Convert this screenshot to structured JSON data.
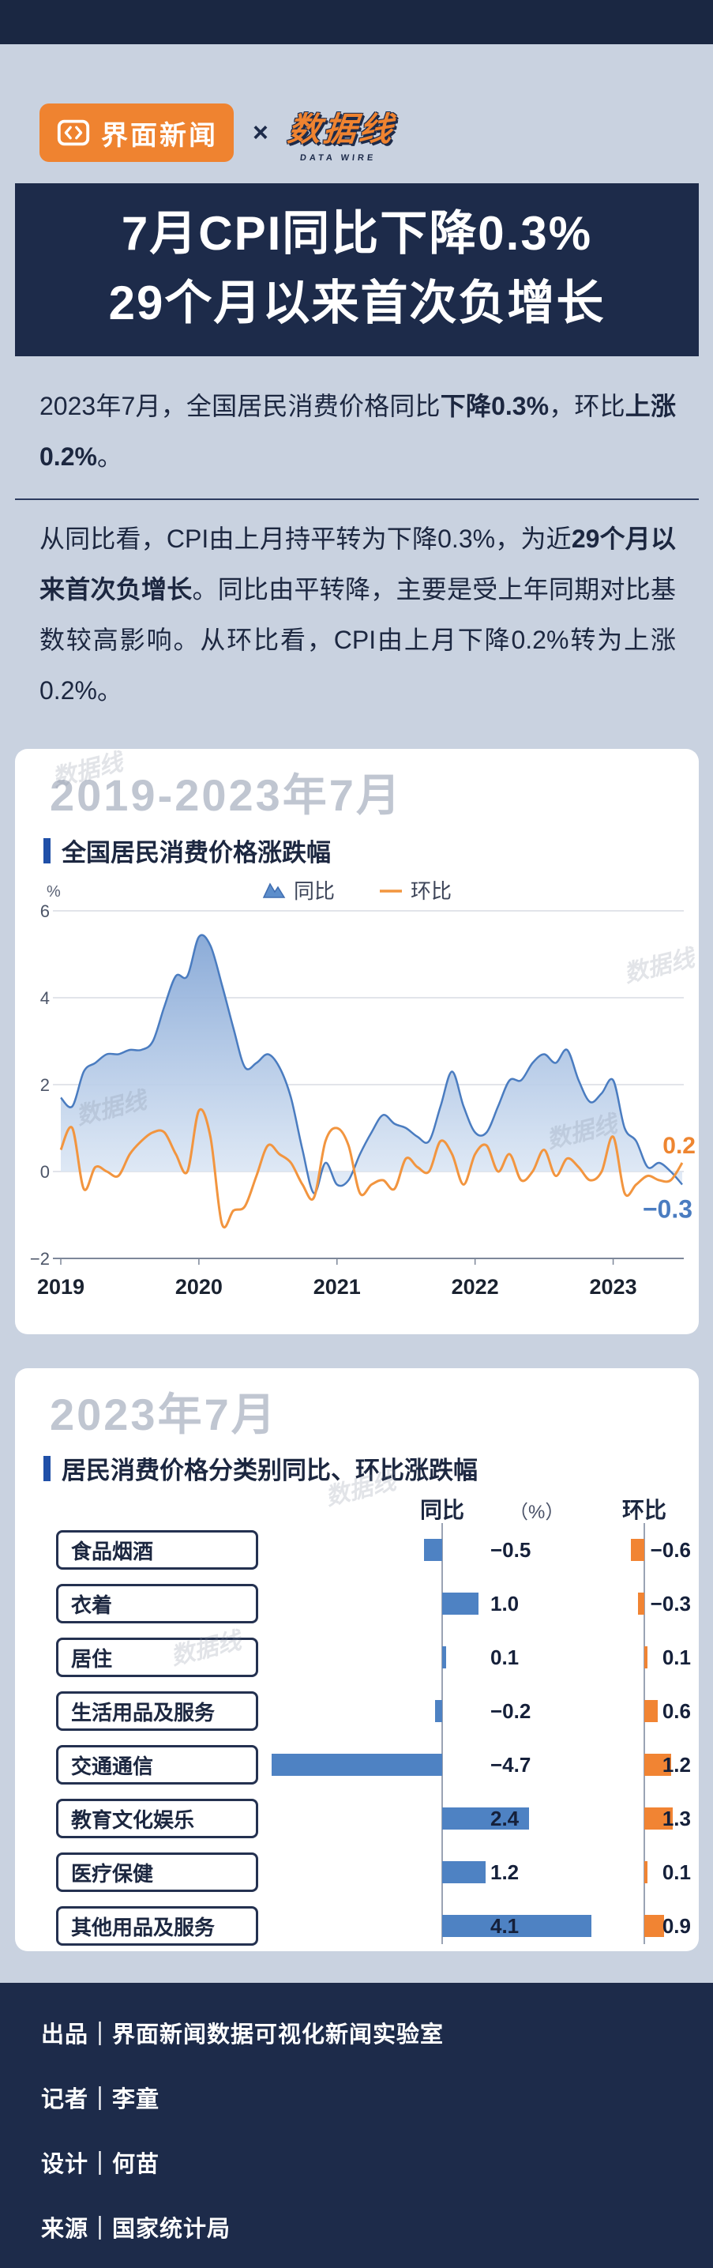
{
  "colors": {
    "navy": "#1d2b4a",
    "orange": "#ef8330",
    "blue": "#4e82c3",
    "page_bg": "#c9d2e0",
    "accent_bar": "#2050a8"
  },
  "watermark": "数据线",
  "header": {
    "brand": {
      "jiemian": "界面新闻",
      "x": "×",
      "datawire": "数据线",
      "datawire_sub": "DATA WIRE"
    },
    "title_line1": "7月CPI同比下降0.3%",
    "title_line2": "29个月以来首次负增长",
    "para1": [
      {
        "t": "2023年7月，全国居民消费价格同比",
        "b": false
      },
      {
        "t": "下降0.3%",
        "b": true
      },
      {
        "t": "，环比",
        "b": false
      },
      {
        "t": "上涨0.2%",
        "b": true
      },
      {
        "t": "。",
        "b": false
      }
    ],
    "para2": [
      {
        "t": "从同比看，CPI由上月持平转为下降0.3%，为近",
        "b": false
      },
      {
        "t": "29个月以来首次负增长",
        "b": true
      },
      {
        "t": "。同比由平转降，主要是受上年同期对比基数较高影响。从环比看，CPI由上月下降0.2%转为上涨0.2%。",
        "b": false
      }
    ]
  },
  "chart1": {
    "period_heading": "2019-2023年7月",
    "title": "全国居民消费价格涨跌幅",
    "unit": "%",
    "legend": [
      "同比",
      "环比"
    ],
    "end_labels": {
      "mom": "0.2",
      "yoy": "−0.3"
    }
  },
  "chart2": {
    "period_heading": "2023年7月",
    "title": "居民消费价格分类别同比、环比涨跌幅",
    "col_yoy": "同比",
    "col_unit": "（%）",
    "col_mom": "环比"
  },
  "footer": {
    "lines": [
      "出品｜界面新闻数据可视化新闻实验室",
      "记者｜李童",
      "设计｜何苗",
      "来源｜国家统计局"
    ]
  },
  "chart_data": [
    {
      "type": "line",
      "title": "全国居民消费价格涨跌幅",
      "ylabel": "%",
      "ylim": [
        -2,
        6
      ],
      "yticks": [
        6,
        4,
        2,
        0,
        -2
      ],
      "xticks": [
        "2019",
        "2020",
        "2021",
        "2022",
        "2023"
      ],
      "legend_position": "top",
      "grid": true,
      "x": [
        "2019-01",
        "2019-02",
        "2019-03",
        "2019-04",
        "2019-05",
        "2019-06",
        "2019-07",
        "2019-08",
        "2019-09",
        "2019-10",
        "2019-11",
        "2019-12",
        "2020-01",
        "2020-02",
        "2020-03",
        "2020-04",
        "2020-05",
        "2020-06",
        "2020-07",
        "2020-08",
        "2020-09",
        "2020-10",
        "2020-11",
        "2020-12",
        "2021-01",
        "2021-02",
        "2021-03",
        "2021-04",
        "2021-05",
        "2021-06",
        "2021-07",
        "2021-08",
        "2021-09",
        "2021-10",
        "2021-11",
        "2021-12",
        "2022-01",
        "2022-02",
        "2022-03",
        "2022-04",
        "2022-05",
        "2022-06",
        "2022-07",
        "2022-08",
        "2022-09",
        "2022-10",
        "2022-11",
        "2022-12",
        "2023-01",
        "2023-02",
        "2023-03",
        "2023-04",
        "2023-05",
        "2023-06",
        "2023-07"
      ],
      "series": [
        {
          "name": "同比",
          "style": "area",
          "color": "#4e82c3",
          "values": [
            1.7,
            1.5,
            2.3,
            2.5,
            2.7,
            2.7,
            2.8,
            2.8,
            3.0,
            3.8,
            4.5,
            4.5,
            5.4,
            5.2,
            4.3,
            3.3,
            2.4,
            2.5,
            2.7,
            2.4,
            1.7,
            0.5,
            -0.5,
            0.2,
            -0.3,
            -0.2,
            0.4,
            0.9,
            1.3,
            1.1,
            1.0,
            0.8,
            0.7,
            1.5,
            2.3,
            1.5,
            0.9,
            0.9,
            1.5,
            2.1,
            2.1,
            2.5,
            2.7,
            2.5,
            2.8,
            2.1,
            1.6,
            1.8,
            2.1,
            1.0,
            0.7,
            0.1,
            0.2,
            0.0,
            -0.3
          ]
        },
        {
          "name": "环比",
          "style": "line",
          "color": "#f2953f",
          "values": [
            0.5,
            1.0,
            -0.4,
            0.1,
            0.0,
            -0.1,
            0.4,
            0.7,
            0.9,
            0.9,
            0.4,
            0.0,
            1.4,
            0.8,
            -1.2,
            -0.9,
            -0.8,
            -0.1,
            0.6,
            0.4,
            0.2,
            -0.3,
            -0.6,
            0.7,
            1.0,
            0.6,
            -0.5,
            -0.3,
            -0.2,
            -0.4,
            0.3,
            0.1,
            0.0,
            0.7,
            0.4,
            -0.3,
            0.4,
            0.6,
            0.0,
            0.4,
            -0.2,
            0.0,
            0.5,
            -0.1,
            0.3,
            0.1,
            -0.2,
            0.0,
            0.8,
            -0.5,
            -0.3,
            -0.1,
            -0.2,
            -0.2,
            0.2
          ]
        }
      ],
      "end_labels": {
        "环比": 0.2,
        "同比": -0.3
      }
    },
    {
      "type": "bar",
      "orientation": "horizontal",
      "title": "居民消费价格分类别同比、环比涨跌幅",
      "unit": "（%）",
      "categories": [
        "食品烟酒",
        "衣着",
        "居住",
        "生活用品及服务",
        "交通通信",
        "教育文化娱乐",
        "医疗保健",
        "其他用品及服务"
      ],
      "series": [
        {
          "name": "同比",
          "color": "#4e82c3",
          "values": [
            -0.5,
            1.0,
            0.1,
            -0.2,
            -4.7,
            2.4,
            1.2,
            4.1
          ]
        },
        {
          "name": "环比",
          "color": "#f18433",
          "values": [
            -0.6,
            -0.3,
            0.1,
            0.6,
            1.2,
            1.3,
            0.1,
            0.9
          ]
        }
      ]
    }
  ]
}
